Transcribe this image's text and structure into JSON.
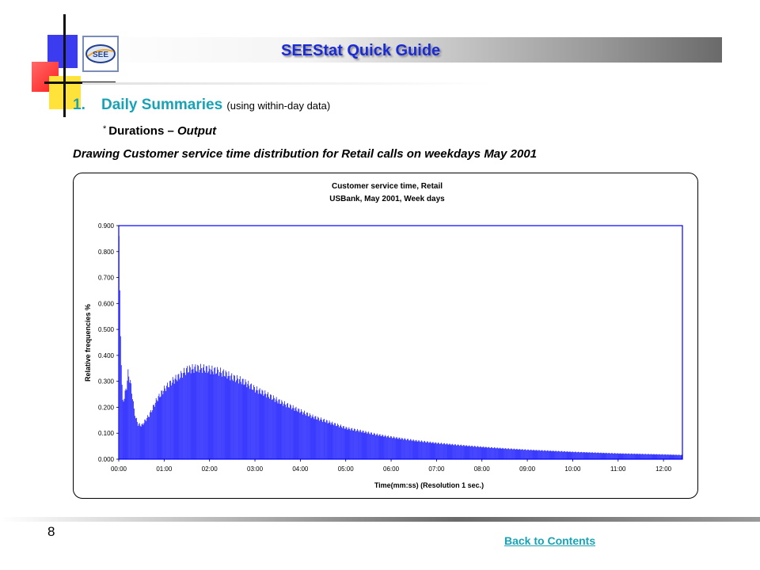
{
  "header": {
    "title": "SEEStat Quick Guide",
    "logo_text": "SEE"
  },
  "section": {
    "number": "1.",
    "title": "Daily Summaries",
    "subtitle": "(using within-day data)",
    "bullet_star": "*",
    "bullet_text": "Durations – ",
    "bullet_italic": "Output",
    "caption": "Drawing Customer service time distribution for Retail calls on weekdays May 2001"
  },
  "footer": {
    "page_number": "8",
    "back_link": "Back to Contents"
  },
  "colors": {
    "bar": "#0000ff",
    "plot_border": "#0000ff",
    "heading": "#17a3b5",
    "title": "#1a2bd6"
  },
  "chart_data": {
    "type": "bar",
    "title": "Customer service time, Retail",
    "subtitle": "USBank, May 2001, Week days",
    "xlabel": "Time(mm:ss) (Resolution 1 sec.)",
    "ylabel": "Relative frequencies %",
    "xlim_seconds": [
      0,
      745
    ],
    "ylim": [
      0,
      0.9
    ],
    "y_ticks": [
      "0.000",
      "0.100",
      "0.200",
      "0.300",
      "0.400",
      "0.500",
      "0.600",
      "0.700",
      "0.800",
      "0.900"
    ],
    "x_ticks": [
      "00:00",
      "01:00",
      "02:00",
      "03:00",
      "04:00",
      "05:00",
      "06:00",
      "07:00",
      "08:00",
      "09:00",
      "10:00",
      "11:00",
      "12:00"
    ],
    "grid": false,
    "legend": "none",
    "series_profile": {
      "x_seconds": [
        0,
        1,
        2,
        3,
        4,
        5,
        7,
        10,
        12,
        15,
        18,
        20,
        22,
        25,
        30,
        40,
        50,
        60,
        70,
        80,
        90,
        100,
        110,
        120,
        130,
        140,
        150,
        160,
        170,
        180,
        195,
        210,
        225,
        240,
        255,
        270,
        285,
        300,
        320,
        340,
        360,
        390,
        420,
        450,
        480,
        510,
        540,
        570,
        600,
        630,
        660,
        690,
        720,
        745
      ],
      "values": [
        0.86,
        0.62,
        0.48,
        0.38,
        0.28,
        0.22,
        0.24,
        0.28,
        0.33,
        0.3,
        0.24,
        0.19,
        0.16,
        0.135,
        0.13,
        0.17,
        0.23,
        0.27,
        0.3,
        0.32,
        0.345,
        0.35,
        0.35,
        0.345,
        0.34,
        0.33,
        0.315,
        0.305,
        0.29,
        0.27,
        0.25,
        0.225,
        0.205,
        0.185,
        0.165,
        0.15,
        0.135,
        0.12,
        0.108,
        0.095,
        0.085,
        0.072,
        0.062,
        0.054,
        0.047,
        0.041,
        0.036,
        0.032,
        0.028,
        0.025,
        0.022,
        0.02,
        0.018,
        0.016
      ]
    }
  }
}
